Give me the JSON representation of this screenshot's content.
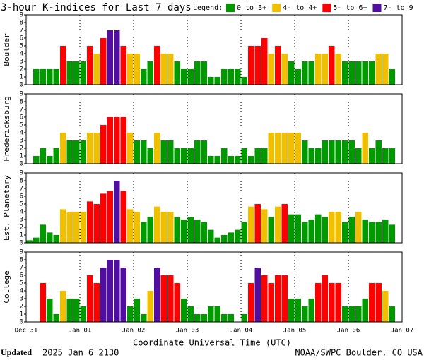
{
  "chart_data": {
    "type": "bar",
    "title": "3-hour K-indices for Last 7 days",
    "legend_title": "Legend:",
    "legend": [
      {
        "label": "0 to 3+",
        "color": "#009a00"
      },
      {
        "label": "4- to 4+",
        "color": "#f0c000"
      },
      {
        "label": "5- to 6+",
        "color": "#ff0000"
      },
      {
        "label": "7- to 9",
        "color": "#520ea0"
      }
    ],
    "ylim": [
      0,
      9
    ],
    "yticks": [
      0,
      1,
      2,
      3,
      4,
      5,
      6,
      7,
      8,
      9
    ],
    "xticks": [
      "Dec 31",
      "Jan 01",
      "Jan 02",
      "Jan 03",
      "Jan 04",
      "Jan 05",
      "Jan 06",
      "Jan 07"
    ],
    "xlabel": "Coordinate Universal Time (UTC)",
    "grid": true,
    "panels": [
      {
        "ylabel": "Boulder",
        "values": [
          0,
          2,
          2,
          2,
          2,
          5,
          3,
          3,
          3,
          5,
          4,
          6,
          7,
          7,
          5,
          4,
          4,
          2,
          3,
          5,
          4,
          4,
          3,
          2,
          2,
          3,
          3,
          1,
          1,
          2,
          2,
          2,
          1,
          5,
          5,
          6,
          4,
          5,
          4,
          3,
          2,
          3,
          3,
          4,
          4,
          5,
          4,
          3,
          3,
          3,
          3,
          3,
          4,
          4,
          2,
          0
        ]
      },
      {
        "ylabel": "Fredericksburg",
        "values": [
          0,
          1,
          2,
          1,
          2,
          4,
          3,
          3,
          3,
          4,
          4,
          5,
          6,
          6,
          6,
          4,
          3,
          3,
          2,
          4,
          3,
          3,
          2,
          2,
          2,
          3,
          3,
          1,
          1,
          2,
          1,
          1,
          2,
          1,
          2,
          2,
          4,
          4,
          4,
          4,
          4,
          3,
          2,
          2,
          3,
          3,
          3,
          3,
          3,
          2,
          4,
          2,
          3,
          2,
          2,
          0
        ]
      },
      {
        "ylabel": "Est. Planetary",
        "values": [
          0.33,
          0.67,
          2.33,
          1.33,
          1,
          4.33,
          4,
          4,
          4,
          5.33,
          5,
          6.33,
          6.67,
          8,
          6.67,
          4.33,
          4,
          2.67,
          3.33,
          4.67,
          4,
          4,
          3.33,
          3,
          3.33,
          3,
          2.67,
          1.67,
          0.67,
          1,
          1.33,
          1.67,
          2.67,
          4.67,
          5,
          4.33,
          3.33,
          4.67,
          5,
          3.67,
          3.67,
          2.67,
          3,
          3.67,
          3.33,
          4,
          4,
          2.67,
          3.33,
          4,
          3,
          2.67,
          2.67,
          3,
          2.33,
          0
        ]
      },
      {
        "ylabel": "College",
        "values": [
          0,
          0,
          5,
          3,
          1,
          4,
          3,
          3,
          2,
          6,
          5,
          7,
          8,
          8,
          7,
          2,
          3,
          1,
          4,
          7,
          6,
          6,
          5,
          3,
          2,
          1,
          1,
          2,
          2,
          1,
          1,
          0,
          1,
          5,
          7,
          6,
          5,
          6,
          6,
          3,
          3,
          2,
          3,
          5,
          6,
          5,
          5,
          2,
          2,
          2,
          3,
          5,
          5,
          4,
          2,
          0
        ]
      }
    ],
    "footer": {
      "updated_label": "Updated",
      "updated_time": "2025 Jan  6 2130",
      "source": "NOAA/SWPC Boulder, CO USA"
    }
  }
}
